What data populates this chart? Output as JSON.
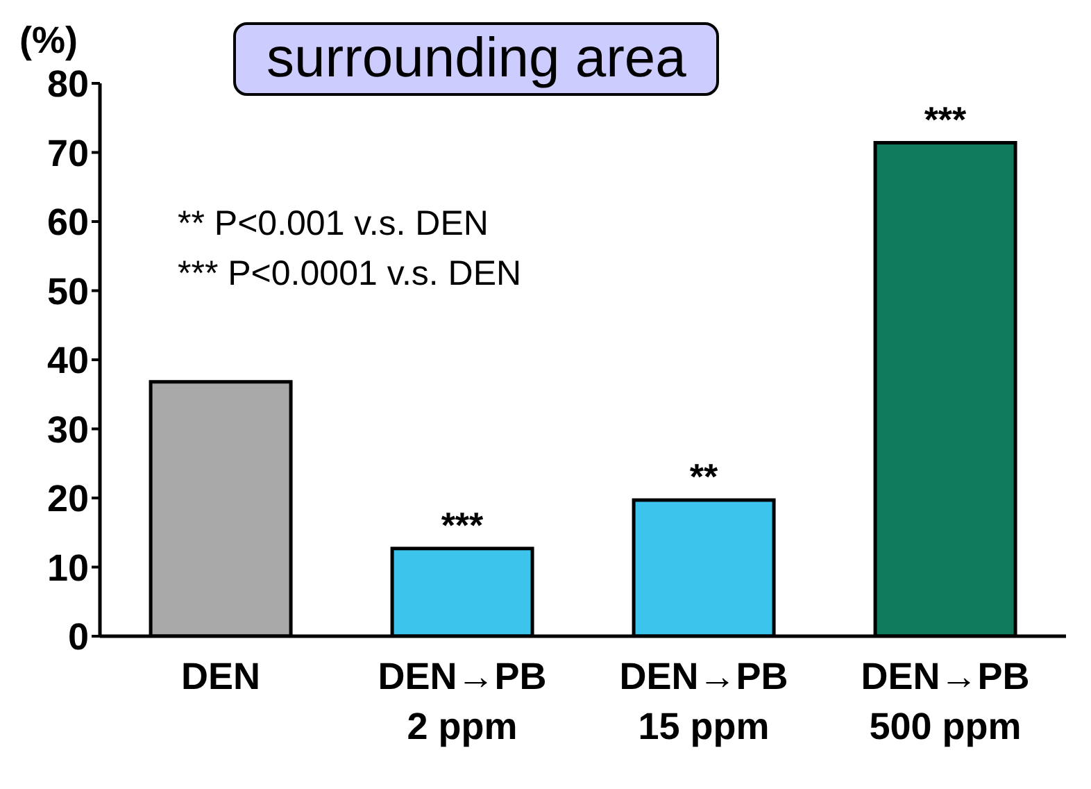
{
  "chart_data": {
    "type": "bar",
    "title": "surrounding area",
    "ylabel": "(%)",
    "categories": [
      "DEN",
      "DEN→PB\n2 ppm",
      "DEN→PB\n15 ppm",
      "DEN→PB\n500 ppm"
    ],
    "values": [
      36.8,
      12.7,
      19.7,
      71.4
    ],
    "colors": [
      "#a8a8a8",
      "#3cc4ec",
      "#3cc4ec",
      "#0f7a5c"
    ],
    "ylim": [
      0,
      80
    ],
    "yticks": [
      0,
      10,
      20,
      30,
      40,
      50,
      60,
      70,
      80
    ],
    "grid": false,
    "annotations": [
      "** P<0.001 v.s. DEN",
      "*** P<0.0001 v.s. DEN",
      {
        "text": "***",
        "x": "DEN→PB\n2 ppm",
        "y": 12.7
      },
      {
        "text": "**",
        "x": "DEN→PB\n15 ppm",
        "y": 19.7
      },
      {
        "text": "***",
        "x": "DEN→PB\n500 ppm",
        "y": 71.4
      }
    ]
  }
}
